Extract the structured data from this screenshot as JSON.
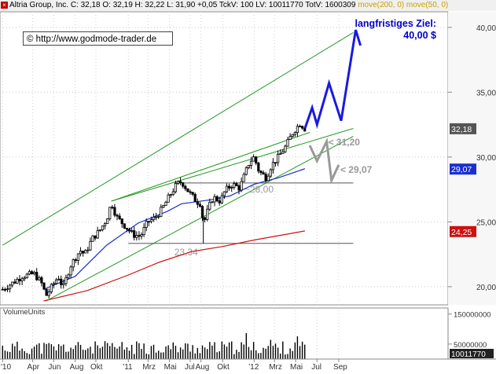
{
  "header": {
    "close_icon": "close-icon",
    "symbol": "Altria Group, Inc.",
    "quote": "C: 32,18  O: 32,19  H: 32,22  L: 31,90  +0,05  TckV: 100  LV: 10011770  TotV: 1600309",
    "moves": "move(200, 0)  move(50, 0)"
  },
  "source_url": "© http://www.godmode-trader.de",
  "target": {
    "line1": "langfristiges Ziel:",
    "line2": "40,00 $"
  },
  "volume_label": "VolumeUnits",
  "colors": {
    "ma50": "#1a2fcf",
    "ma200": "#cc1111",
    "channel": "#229922",
    "projection": "#1a1adf",
    "projection_alt": "#999999",
    "candle": "#000000",
    "last_price": "#555555"
  },
  "chart_data": {
    "type": "candlestick",
    "ylim": [
      18.6,
      41.2
    ],
    "y_ticks": [
      20,
      25,
      30,
      35,
      40
    ],
    "x_tick_labels": [
      "'10",
      "Apr",
      "Jun",
      "Aug",
      "Okt",
      "'11",
      "Mrz",
      "Mai",
      "Jul",
      "Aug",
      "Okt",
      "'12",
      "Mrz",
      "Mai",
      "Jul",
      "Sep"
    ],
    "x_start": "2010-01",
    "price_anchors": [
      [
        "2010-01-04",
        19.8
      ],
      [
        "2010-02-08",
        20.4
      ],
      [
        "2010-03-01",
        20.8
      ],
      [
        "2010-04-05",
        21.0
      ],
      [
        "2010-04-26",
        20.3
      ],
      [
        "2010-05-10",
        19.3
      ],
      [
        "2010-05-24",
        19.9
      ],
      [
        "2010-06-14",
        20.8
      ],
      [
        "2010-06-28",
        19.9
      ],
      [
        "2010-07-19",
        21.6
      ],
      [
        "2010-08-16",
        22.8
      ],
      [
        "2010-08-30",
        22.5
      ],
      [
        "2010-09-20",
        23.7
      ],
      [
        "2010-10-11",
        24.3
      ],
      [
        "2010-11-01",
        25.2
      ],
      [
        "2010-11-15",
        26.5
      ],
      [
        "2010-11-29",
        25.4
      ],
      [
        "2010-12-20",
        24.8
      ],
      [
        "2011-01-17",
        24.0
      ],
      [
        "2011-02-07",
        23.9
      ],
      [
        "2011-02-28",
        25.0
      ],
      [
        "2011-03-21",
        25.3
      ],
      [
        "2011-04-11",
        26.0
      ],
      [
        "2011-05-02",
        27.0
      ],
      [
        "2011-05-23",
        27.9
      ],
      [
        "2011-06-06",
        28.1
      ],
      [
        "2011-06-27",
        27.3
      ],
      [
        "2011-07-18",
        26.6
      ],
      [
        "2011-08-01",
        26.4
      ],
      [
        "2011-08-08",
        24.8
      ],
      [
        "2011-08-22",
        26.0
      ],
      [
        "2011-09-05",
        26.9
      ],
      [
        "2011-09-26",
        26.6
      ],
      [
        "2011-10-10",
        27.4
      ],
      [
        "2011-10-31",
        27.9
      ],
      [
        "2011-11-21",
        27.6
      ],
      [
        "2011-12-05",
        28.6
      ],
      [
        "2011-12-19",
        29.6
      ],
      [
        "2012-01-02",
        30.0
      ],
      [
        "2012-01-16",
        28.9
      ],
      [
        "2012-02-06",
        28.4
      ],
      [
        "2012-02-20",
        29.3
      ],
      [
        "2012-03-12",
        30.0
      ],
      [
        "2012-04-02",
        30.8
      ],
      [
        "2012-04-23",
        31.9
      ],
      [
        "2012-05-14",
        32.6
      ],
      [
        "2012-05-28",
        32.18
      ]
    ],
    "last_price": {
      "label": "32,18",
      "value": 32.18
    },
    "support_lines": [
      {
        "label": "~28,00",
        "value": 28.0,
        "from": "2011-05-16",
        "to": "2012-10-15"
      },
      {
        "label": "23,34",
        "value": 23.34,
        "from": "2011-01-03",
        "to": "2012-10-15"
      }
    ],
    "channel_lines": [
      {
        "name": "upper-channel",
        "from": [
          "2010-01-04",
          23.2
        ],
        "to": [
          "2012-10-15",
          39.6
        ]
      },
      {
        "name": "middle-line",
        "from": [
          "2010-11-15",
          26.6
        ],
        "to": [
          "2012-10-15",
          32.2
        ]
      },
      {
        "name": "upper-resistance",
        "from": [
          "2010-11-15",
          26.6
        ],
        "to": [
          "2012-06-11",
          31.9
        ]
      },
      {
        "name": "lower-channel",
        "from": [
          "2010-05-10",
          18.9
        ],
        "to": [
          "2012-10-15",
          31.6
        ]
      }
    ],
    "ma50": {
      "label": "29,07",
      "value": 29.07,
      "points": [
        [
          "2010-05-03",
          19.8
        ],
        [
          "2010-08-02",
          20.8
        ],
        [
          "2010-11-01",
          23.2
        ],
        [
          "2011-01-31",
          24.9
        ],
        [
          "2011-04-25",
          25.8
        ],
        [
          "2011-06-06",
          26.4
        ],
        [
          "2011-08-29",
          26.7
        ],
        [
          "2011-10-24",
          27.0
        ],
        [
          "2012-01-02",
          27.9
        ],
        [
          "2012-03-12",
          28.4
        ],
        [
          "2012-05-28",
          29.1
        ]
      ]
    },
    "ma200": {
      "label": "24,25",
      "value": 24.25,
      "points": [
        [
          "2010-05-03",
          18.9
        ],
        [
          "2010-09-06",
          19.7
        ],
        [
          "2011-01-03",
          20.9
        ],
        [
          "2011-04-04",
          21.9
        ],
        [
          "2011-07-04",
          22.7
        ],
        [
          "2011-10-03",
          23.1
        ],
        [
          "2012-01-02",
          23.6
        ],
        [
          "2012-03-26",
          24.0
        ],
        [
          "2012-05-28",
          24.3
        ]
      ]
    },
    "projection_main": [
      [
        "2012-05-28",
        32.2
      ],
      [
        "2012-06-18",
        33.8
      ],
      [
        "2012-07-02",
        32.5
      ],
      [
        "2012-08-06",
        35.7
      ],
      [
        "2012-09-10",
        32.8
      ],
      [
        "2012-10-22",
        39.8
      ],
      [
        "2012-11-05",
        38.6
      ]
    ],
    "projection_alt": [
      [
        "2012-06-11",
        30.9
      ],
      [
        "2012-07-02",
        29.7
      ],
      [
        "2012-07-30",
        31.2
      ],
      [
        "2012-08-13",
        28.2
      ],
      [
        "2012-09-03",
        29.4
      ]
    ],
    "projection_labels": [
      {
        "label": "< 31,20",
        "value": 31.2,
        "at": "2012-07-30"
      },
      {
        "label": "< 29,07",
        "value": 29.07,
        "at": "2012-09-03"
      }
    ],
    "volume": {
      "label": "10011770",
      "y_ticks": [
        {
          "label": "150000000",
          "value": 150000000
        },
        {
          "label": "50000000",
          "value": 50000000
        }
      ],
      "typical_range": [
        15000000,
        60000000
      ]
    }
  }
}
